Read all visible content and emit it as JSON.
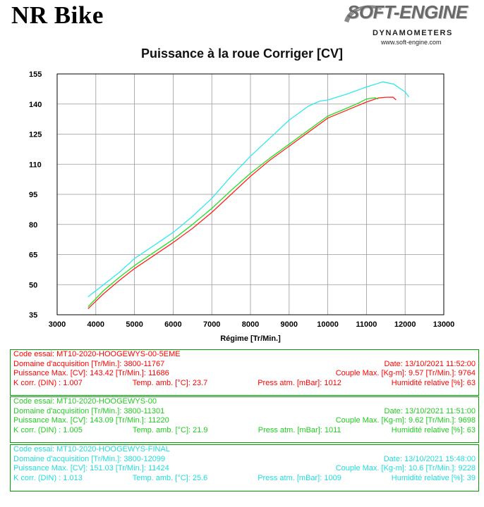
{
  "header": {
    "brand": "NR Bike",
    "logo_main": "SOFT-ENGINE",
    "logo_sub": "DYNAMOMETERS",
    "logo_url": "www.soft-engine.com"
  },
  "chart_data": {
    "type": "line",
    "title": "Puissance à la roue Corriger [CV]",
    "xlabel": "Régime [Tr/Min.]",
    "ylabel": "",
    "xlim": [
      3000,
      13000
    ],
    "ylim": [
      35,
      155
    ],
    "xticks": [
      3000,
      4000,
      5000,
      6000,
      7000,
      8000,
      9000,
      10000,
      11000,
      12000,
      13000
    ],
    "yticks": [
      35,
      50,
      65,
      80,
      95,
      110,
      125,
      140,
      155
    ],
    "grid": true,
    "series": [
      {
        "color": "#ff2020",
        "x": [
          3800,
          4200,
          4600,
          5000,
          5500,
          6000,
          6500,
          7000,
          7500,
          8000,
          8500,
          9000,
          9500,
          10000,
          10500,
          11000,
          11300,
          11500,
          11686,
          11767
        ],
        "y": [
          38,
          45.5,
          52,
          58,
          64.5,
          71,
          78,
          86,
          95,
          104,
          112,
          119,
          126,
          133,
          137,
          141,
          143,
          143.4,
          143.42,
          142
        ]
      },
      {
        "color": "#20e020",
        "x": [
          3800,
          4200,
          4600,
          5000,
          5500,
          6000,
          6500,
          7000,
          7500,
          8000,
          8500,
          9000,
          9500,
          10000,
          10500,
          10800,
          11000,
          11220,
          11301
        ],
        "y": [
          39,
          47,
          53.5,
          59.5,
          66,
          72.5,
          80,
          88,
          97,
          105.5,
          113,
          120,
          127,
          134,
          138,
          140.5,
          142.5,
          143.09,
          142.5
        ]
      },
      {
        "color": "#30e8f0",
        "x": [
          3800,
          4200,
          4600,
          5000,
          5500,
          6000,
          6500,
          7000,
          7500,
          8000,
          8500,
          9000,
          9500,
          9800,
          10000,
          10500,
          11000,
          11424,
          11700,
          12000,
          12099
        ],
        "y": [
          44,
          50,
          56,
          63,
          69.5,
          76,
          84,
          93,
          104,
          114,
          123,
          132,
          139,
          141.5,
          142,
          145,
          148.5,
          151.03,
          150,
          146,
          143.5
        ]
      }
    ]
  },
  "tests": [
    {
      "color": "#ff0000",
      "code": "Code essai:  MT10-2020-HOOGEWYS-00-5EME",
      "domain": "Domaine d'acquisition [Tr/Min.]: 3800-11767",
      "date": "Date: 13/10/2021   11:52:00",
      "power": "Puissance Max. [CV]: 143.42   [Tr/Min.]: 11686",
      "torque": "Couple Max. [Kg-m]: 9.57   [Tr/Min.]: 9764",
      "kcorr": "K corr. (DIN) : 1.007",
      "temp": "Temp. amb. [°C]: 23.7",
      "press": "Press atm. [mBar]: 1012",
      "humid": "Humidité relative [%]: 63"
    },
    {
      "color": "#22cc22",
      "code": "Code essai:  MT10-2020-HOOGEWYS-00",
      "domain": "Domaine d'acquisition [Tr/Min.]: 3800-11301",
      "date": "Date: 13/10/2021   11:51:00",
      "power": "Puissance Max. [CV]: 143.09   [Tr/Min.]: 11220",
      "torque": "Couple Max. [Kg-m]: 9.62   [Tr/Min.]: 9698",
      "kcorr": "K corr. (DIN) : 1.005",
      "temp": "Temp. amb. [°C]: 21.9",
      "press": "Press atm. [mBar]: 1011",
      "humid": "Humidité relative [%]: 63"
    },
    {
      "color": "#22dcdc",
      "code": "Code essai:  MT10-2020-HOOGEWYS-FINAL",
      "domain": "Domaine d'acquisition [Tr/Min.]: 3800-12099",
      "date": "Date: 13/10/2021   15:48:00",
      "power": "Puissance Max. [CV]: 151.03   [Tr/Min.]: 11424",
      "torque": "Couple Max. [Kg-m]: 10.6   [Tr/Min.]: 9228",
      "kcorr": "K corr. (DIN) : 1.013",
      "temp": "Temp. amb. [°C]: 25.6",
      "press": "Press atm. [mBar]: 1009",
      "humid": "Humidité relative [%]: 39"
    }
  ]
}
